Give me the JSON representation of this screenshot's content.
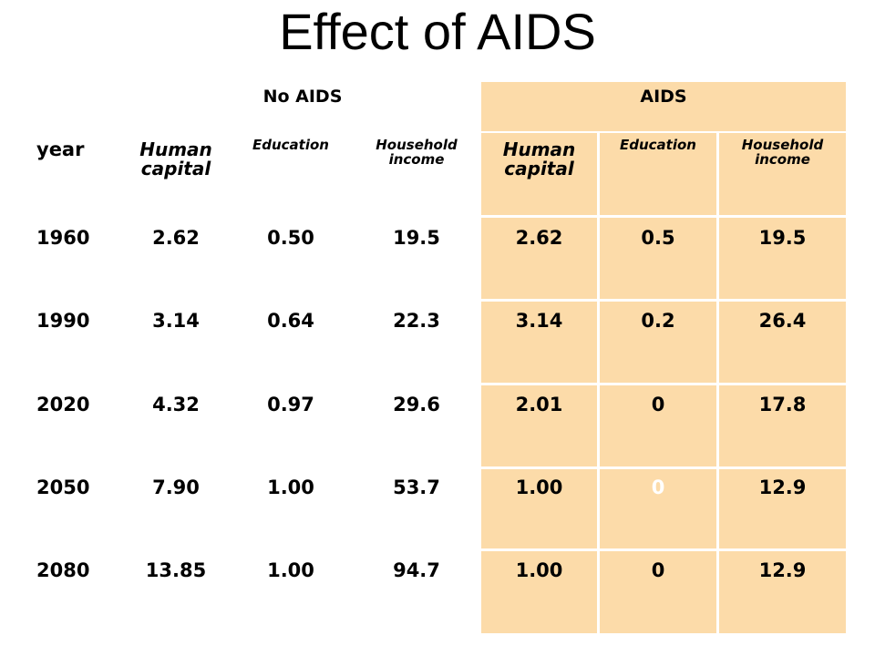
{
  "title": "Effect of AIDS",
  "groups": {
    "no_aids": "No AIDS",
    "aids": "AIDS"
  },
  "columns": {
    "year": "year",
    "no_aids": [
      "Human capital",
      "Education",
      "Household income"
    ],
    "aids": [
      "Human capital",
      "Education",
      "Household income"
    ]
  },
  "rows": [
    {
      "year": "1960",
      "no_aids": [
        "2.62",
        "0.50",
        "19.5"
      ],
      "aids": [
        "2.62",
        "0.5",
        "19.5"
      ]
    },
    {
      "year": "1990",
      "no_aids": [
        "3.14",
        "0.64",
        "22.3"
      ],
      "aids": [
        "3.14",
        "0.2",
        "26.4"
      ]
    },
    {
      "year": "2020",
      "no_aids": [
        "4.32",
        "0.97",
        "29.6"
      ],
      "aids": [
        "2.01",
        "0",
        "17.8"
      ]
    },
    {
      "year": "2050",
      "no_aids": [
        "7.90",
        "1.00",
        "53.7"
      ],
      "aids": [
        "1.00",
        "0",
        "12.9"
      ]
    },
    {
      "year": "2080",
      "no_aids": [
        "13.85",
        "1.00",
        "94.7"
      ],
      "aids": [
        "1.00",
        "0",
        "12.9"
      ]
    }
  ],
  "colors": {
    "aids_panel": "#FCDBA9",
    "highlight_text": "#FFFFFF",
    "text": "#000000"
  }
}
